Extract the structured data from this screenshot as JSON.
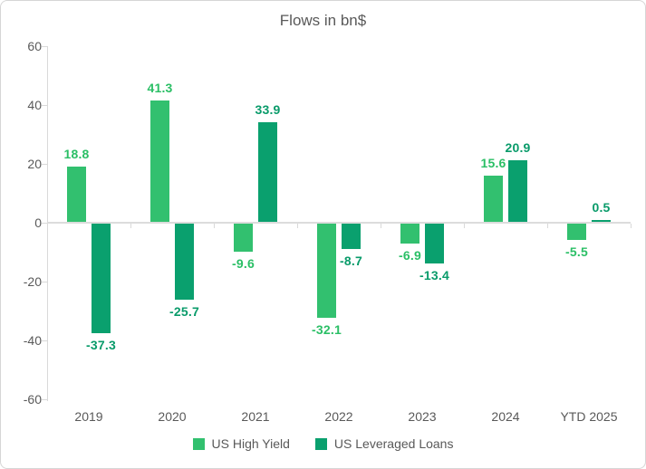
{
  "chart_data": {
    "type": "bar",
    "title": "Flows in bn$",
    "categories": [
      "2019",
      "2020",
      "2021",
      "2022",
      "2023",
      "2024",
      "YTD 2025"
    ],
    "series": [
      {
        "name": "US High Yield",
        "color": "#32c06f",
        "label_color": "#2bbf66",
        "values": [
          18.8,
          41.3,
          -9.6,
          -32.1,
          -6.9,
          15.6,
          -5.5
        ]
      },
      {
        "name": "US Leveraged Loans",
        "color": "#0aa06e",
        "label_color": "#099b6a",
        "values": [
          -37.3,
          -25.7,
          33.9,
          -8.7,
          -13.4,
          20.9,
          0.5
        ]
      }
    ],
    "ylim": [
      -60,
      60
    ],
    "yticks": [
      60,
      40,
      20,
      0,
      -20,
      -40,
      -60
    ],
    "grid": "zero-baseline-only",
    "legend_position": "bottom",
    "value_label_decimals": 1
  },
  "style": {
    "text_color": "#595959",
    "axis_color": "#d9d9d9",
    "zero_line_color": "#dcdcdc",
    "background": "#ffffff",
    "border_color": "#d6d6d6"
  }
}
